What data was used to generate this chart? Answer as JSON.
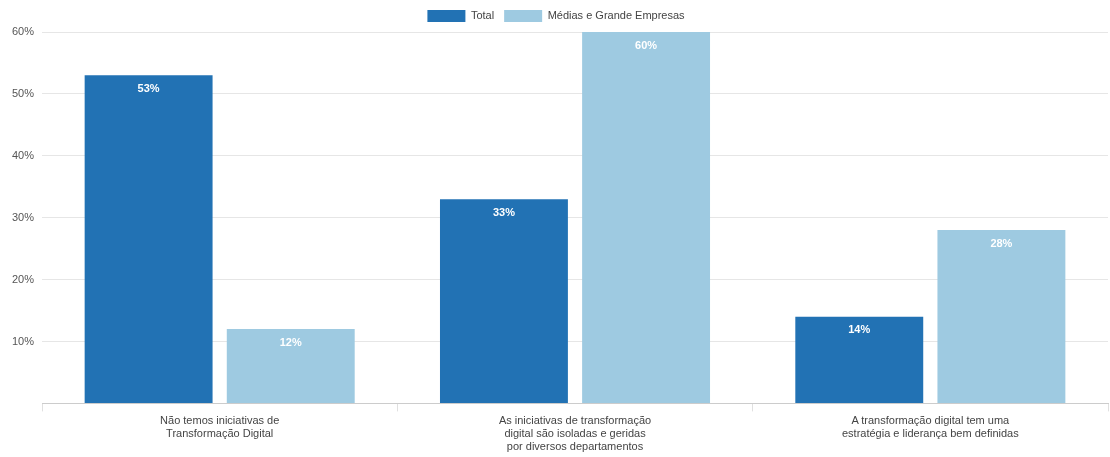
{
  "chart_data": {
    "type": "bar",
    "categories": [
      "Não temos iniciativas de\nTransformação Digital",
      "As iniciativas de transformação\ndigital são isoladas e geridas\npor diversos departamentos",
      "A transformação digital tem uma\nestratégia e liderança bem definidas"
    ],
    "series": [
      {
        "name": "Total",
        "color": "#2272b4",
        "values": [
          53,
          33,
          14
        ],
        "value_labels": [
          "53%",
          "33%",
          "14%"
        ]
      },
      {
        "name": "Médias e Grande Empresas",
        "color": "#9ecae1",
        "values": [
          12,
          60,
          28
        ],
        "value_labels": [
          "12%",
          "60%",
          "28%"
        ]
      }
    ],
    "ylim": [
      0,
      60
    ],
    "yticks": [
      {
        "value": 0,
        "label": null
      },
      {
        "value": 10,
        "label": "10%"
      },
      {
        "value": 20,
        "label": "20%"
      },
      {
        "value": 30,
        "label": "30%"
      },
      {
        "value": 40,
        "label": "40%"
      },
      {
        "value": 50,
        "label": "50%"
      },
      {
        "value": 60,
        "label": "60%"
      }
    ],
    "grid": "y",
    "legend": "top"
  }
}
